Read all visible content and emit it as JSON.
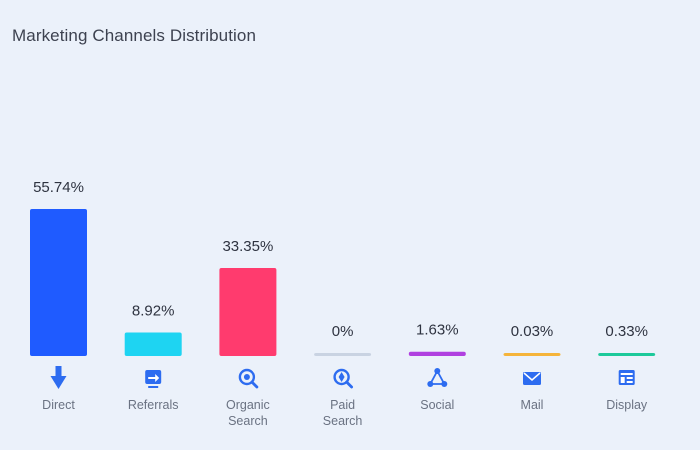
{
  "chart_data": {
    "type": "bar",
    "title": "Marketing Channels Distribution",
    "categories": [
      "Direct",
      "Referrals",
      "Organic Search",
      "Paid Search",
      "Social",
      "Mail",
      "Display"
    ],
    "category_lines": [
      [
        "Direct"
      ],
      [
        "Referrals"
      ],
      [
        "Organic",
        "Search"
      ],
      [
        "Paid",
        "Search"
      ],
      [
        "Social"
      ],
      [
        "Mail"
      ],
      [
        "Display"
      ]
    ],
    "values": [
      55.74,
      8.92,
      33.35,
      0,
      1.63,
      0.03,
      0.33
    ],
    "value_labels": [
      "55.74%",
      "8.92%",
      "33.35%",
      "0%",
      "1.63%",
      "0.03%",
      "0.33%"
    ],
    "colors": [
      "#1f5bff",
      "#1ed4f2",
      "#ff3b6e",
      "#c9d3e2",
      "#b040e0",
      "#f5b43a",
      "#1cc99a"
    ],
    "icons": [
      "arrow-down-icon",
      "referral-icon",
      "search-icon",
      "paid-search-icon",
      "social-icon",
      "mail-icon",
      "display-icon"
    ],
    "ylim": [
      0,
      55.74
    ],
    "grid": false,
    "legend": "none"
  }
}
